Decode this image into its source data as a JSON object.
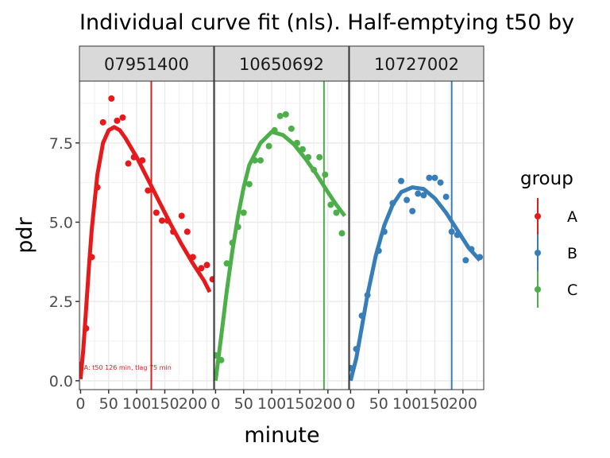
{
  "chart_data": {
    "type": "scatter",
    "title": "Individual curve fit (nls). Half-emptying t50 by",
    "xlabel": "minute",
    "ylabel": "pdr",
    "xlim": [
      -2,
      237
    ],
    "ylim": [
      -0.28,
      9.45
    ],
    "x_ticks": [
      0,
      50,
      100,
      150,
      200
    ],
    "x_tick_labels": [
      "0",
      "50",
      "100",
      "150",
      "200"
    ],
    "y_ticks": [
      0.0,
      2.5,
      5.0,
      7.5
    ],
    "y_tick_labels": [
      "0.0",
      "2.5",
      "5.0",
      "7.5"
    ],
    "grid": true,
    "legend": {
      "title": "group",
      "placement": "right",
      "entries": [
        {
          "label": "A",
          "color": "#E41A1C"
        },
        {
          "label": "B",
          "color": "#377EB8"
        },
        {
          "label": "C",
          "color": "#4DAF4A"
        }
      ]
    },
    "panels": [
      {
        "id": "07951400",
        "group": "A",
        "color": "#E41A1C",
        "t50": 126,
        "annotation": "A: t50 126 min, tlag 75 min",
        "points": [
          [
            0,
            0.5
          ],
          [
            10,
            1.65
          ],
          [
            20,
            3.9
          ],
          [
            30,
            6.1
          ],
          [
            40,
            8.15
          ],
          [
            55,
            8.9
          ],
          [
            65,
            8.2
          ],
          [
            75,
            8.3
          ],
          [
            85,
            6.85
          ],
          [
            95,
            7.05
          ],
          [
            110,
            6.95
          ],
          [
            120,
            6.0
          ],
          [
            135,
            5.3
          ],
          [
            145,
            5.05
          ],
          [
            155,
            5.05
          ],
          [
            165,
            4.7
          ],
          [
            180,
            5.2
          ],
          [
            190,
            4.7
          ],
          [
            200,
            3.9
          ],
          [
            215,
            3.55
          ],
          [
            225,
            3.65
          ],
          [
            235,
            3.2
          ]
        ],
        "fit": [
          [
            0,
            0.05
          ],
          [
            5,
            1.0
          ],
          [
            10,
            2.3
          ],
          [
            15,
            3.6
          ],
          [
            20,
            4.8
          ],
          [
            30,
            6.5
          ],
          [
            40,
            7.5
          ],
          [
            50,
            7.9
          ],
          [
            60,
            8.0
          ],
          [
            70,
            7.9
          ],
          [
            80,
            7.65
          ],
          [
            100,
            7.05
          ],
          [
            120,
            6.35
          ],
          [
            140,
            5.65
          ],
          [
            160,
            4.95
          ],
          [
            180,
            4.3
          ],
          [
            200,
            3.7
          ],
          [
            220,
            3.15
          ],
          [
            230,
            2.8
          ]
        ]
      },
      {
        "id": "10650692",
        "group": "C",
        "color": "#4DAF4A",
        "t50": 193,
        "annotation": "",
        "points": [
          [
            0,
            0.8
          ],
          [
            10,
            0.65
          ],
          [
            20,
            3.7
          ],
          [
            30,
            4.35
          ],
          [
            40,
            4.85
          ],
          [
            50,
            5.3
          ],
          [
            60,
            6.2
          ],
          [
            70,
            6.95
          ],
          [
            80,
            6.95
          ],
          [
            95,
            7.4
          ],
          [
            105,
            7.9
          ],
          [
            115,
            8.35
          ],
          [
            125,
            8.4
          ],
          [
            135,
            7.95
          ],
          [
            145,
            7.5
          ],
          [
            155,
            7.3
          ],
          [
            165,
            7.05
          ],
          [
            175,
            6.65
          ],
          [
            185,
            7.05
          ],
          [
            195,
            6.5
          ],
          [
            205,
            5.55
          ],
          [
            215,
            5.3
          ],
          [
            225,
            4.65
          ]
        ],
        "fit": [
          [
            0,
            0.0
          ],
          [
            10,
            1.4
          ],
          [
            20,
            2.85
          ],
          [
            30,
            4.1
          ],
          [
            40,
            5.2
          ],
          [
            50,
            6.1
          ],
          [
            60,
            6.8
          ],
          [
            80,
            7.5
          ],
          [
            100,
            7.85
          ],
          [
            120,
            7.75
          ],
          [
            140,
            7.45
          ],
          [
            160,
            7.0
          ],
          [
            180,
            6.5
          ],
          [
            200,
            5.95
          ],
          [
            215,
            5.55
          ],
          [
            230,
            5.2
          ]
        ]
      },
      {
        "id": "10727002",
        "group": "B",
        "color": "#377EB8",
        "t50": 180,
        "annotation": "",
        "points": [
          [
            0,
            0.4
          ],
          [
            10,
            1.0
          ],
          [
            20,
            2.05
          ],
          [
            30,
            2.7
          ],
          [
            50,
            4.1
          ],
          [
            60,
            4.7
          ],
          [
            75,
            5.6
          ],
          [
            90,
            6.3
          ],
          [
            100,
            5.7
          ],
          [
            110,
            5.35
          ],
          [
            120,
            5.9
          ],
          [
            130,
            5.85
          ],
          [
            140,
            6.4
          ],
          [
            150,
            6.4
          ],
          [
            160,
            6.25
          ],
          [
            170,
            5.8
          ],
          [
            180,
            4.7
          ],
          [
            190,
            4.6
          ],
          [
            205,
            3.8
          ],
          [
            215,
            4.15
          ],
          [
            230,
            3.9
          ]
        ],
        "fit": [
          [
            0,
            0.0
          ],
          [
            10,
            0.7
          ],
          [
            20,
            1.7
          ],
          [
            30,
            2.7
          ],
          [
            45,
            3.95
          ],
          [
            60,
            4.9
          ],
          [
            75,
            5.55
          ],
          [
            90,
            5.95
          ],
          [
            110,
            6.1
          ],
          [
            130,
            6.05
          ],
          [
            150,
            5.75
          ],
          [
            170,
            5.3
          ],
          [
            190,
            4.75
          ],
          [
            210,
            4.2
          ],
          [
            230,
            3.8
          ]
        ]
      }
    ]
  }
}
